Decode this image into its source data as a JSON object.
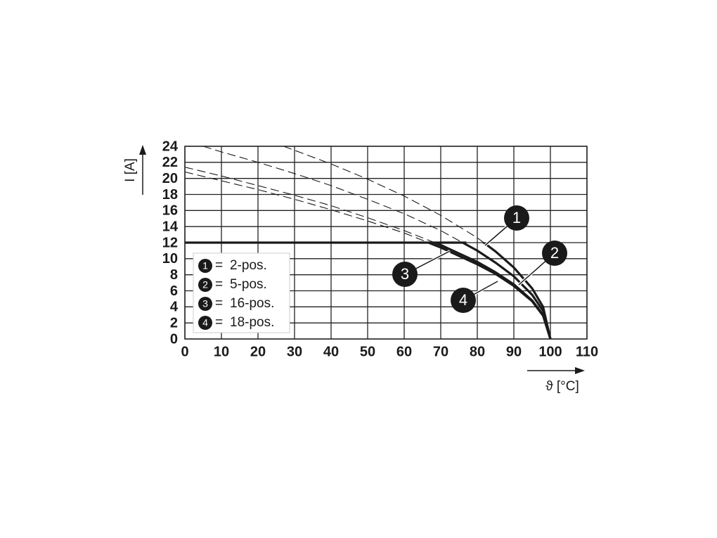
{
  "chart_data": {
    "type": "line",
    "x_label": "ϑ [°C]",
    "y_label": "I [A]",
    "xlim": [
      0,
      110
    ],
    "xticks": [
      0,
      10,
      20,
      30,
      40,
      50,
      60,
      70,
      80,
      90,
      100,
      110
    ],
    "ylim": [
      0,
      24
    ],
    "yticks": [
      0,
      2,
      4,
      6,
      8,
      10,
      12,
      14,
      16,
      18,
      20,
      22,
      24
    ],
    "grid": true,
    "legend_separator": "=",
    "limit": {
      "x": [
        0,
        77
      ],
      "values": [
        12,
        12
      ]
    },
    "series": [
      {
        "marker": "1",
        "name": "2-pos.",
        "color": "#1a1a1a",
        "x": [
          27,
          30,
          40,
          50,
          60,
          70,
          80,
          85,
          90,
          95,
          98,
          100
        ],
        "values": [
          24.0,
          23.5,
          21.8,
          19.9,
          17.8,
          15.4,
          12.6,
          10.9,
          8.9,
          6.3,
          4.0,
          0
        ]
      },
      {
        "marker": "2",
        "name": "5-pos.",
        "color": "#1a1a1a",
        "x": [
          5,
          10,
          20,
          30,
          40,
          50,
          60,
          70,
          80,
          85,
          90,
          95,
          98,
          100
        ],
        "values": [
          24.0,
          23.3,
          22.0,
          20.6,
          19.1,
          17.4,
          15.6,
          13.5,
          11.0,
          9.5,
          7.8,
          5.5,
          3.5,
          0
        ]
      },
      {
        "marker": "3",
        "name": "16-pos.",
        "color": "#1a1a1a",
        "x": [
          0,
          10,
          20,
          30,
          40,
          50,
          60,
          70,
          80,
          85,
          90,
          95,
          98,
          100
        ],
        "values": [
          21.4,
          20.3,
          19.1,
          17.9,
          16.6,
          15.1,
          13.5,
          11.7,
          9.6,
          8.3,
          6.8,
          4.8,
          3.0,
          0
        ]
      },
      {
        "marker": "4",
        "name": "18-pos.",
        "color": "#1a1a1a",
        "x": [
          0,
          10,
          20,
          30,
          40,
          50,
          60,
          70,
          80,
          85,
          90,
          95,
          98,
          100
        ],
        "values": [
          20.8,
          19.7,
          18.6,
          17.4,
          16.1,
          14.7,
          13.2,
          11.4,
          9.3,
          8.1,
          6.6,
          4.7,
          2.9,
          0
        ]
      }
    ]
  }
}
